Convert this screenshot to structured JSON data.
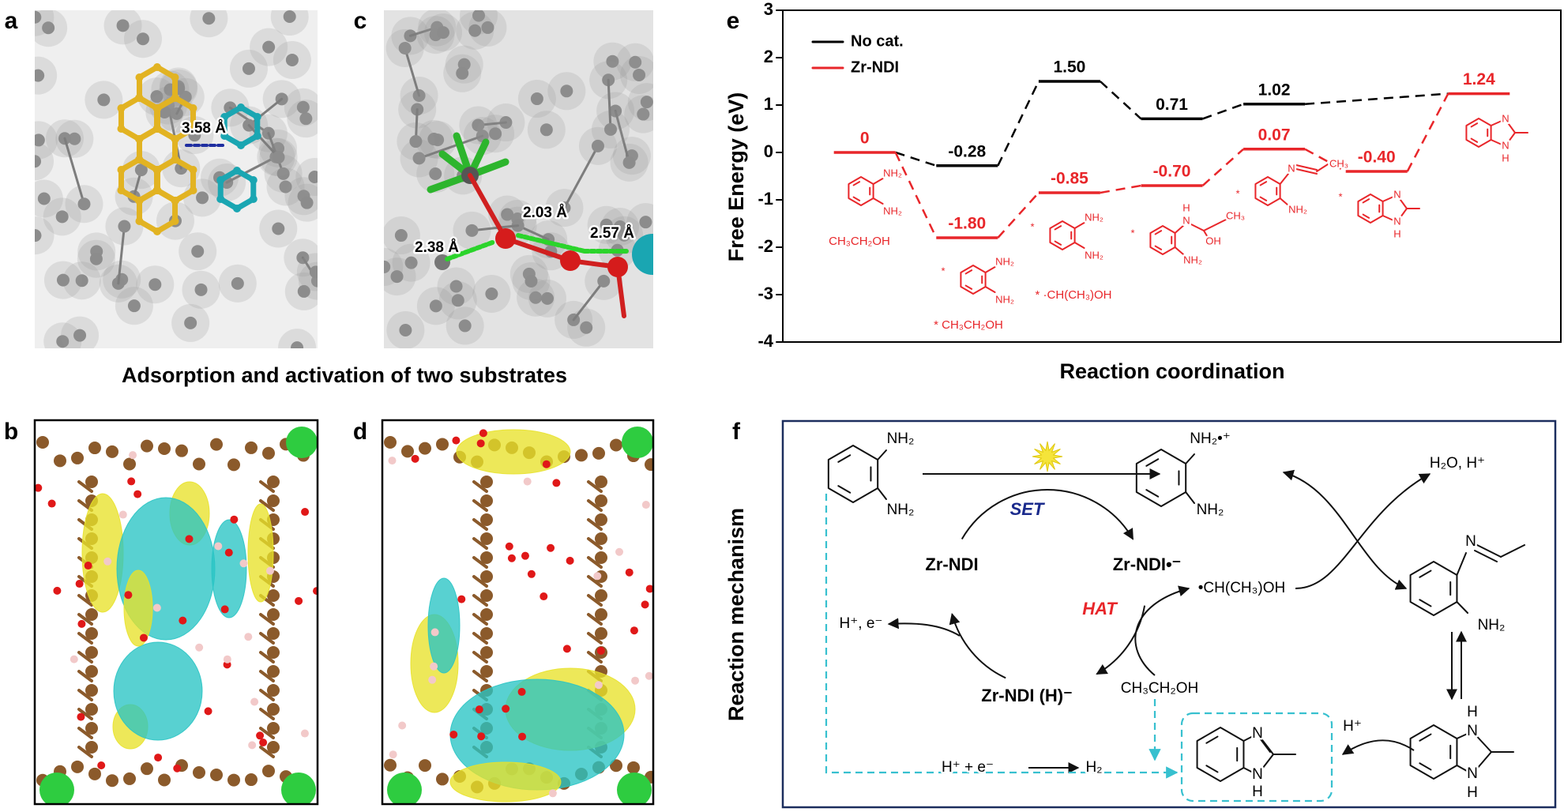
{
  "panel_labels": [
    "a",
    "b",
    "c",
    "d",
    "e",
    "f"
  ],
  "panel_a": {
    "distance_label": "3.58 Å"
  },
  "panel_c": {
    "distance_labels": [
      "2.38 Å",
      "2.03 Å",
      "2.57 Å"
    ]
  },
  "caption": "Adsorption and activation of two substrates",
  "chart_data": {
    "type": "energy",
    "x_label": "Reaction coordination",
    "y_label": "Free Energy (eV)",
    "xlim": [
      0.2,
      7.8
    ],
    "ylim": [
      -4,
      3
    ],
    "yticks": [
      -4,
      -3,
      -2,
      -1,
      0,
      1,
      2,
      3
    ],
    "legend": "upper left",
    "series": [
      {
        "name": "No cat.",
        "color": "#000000",
        "x": [
          1,
          2,
          3,
          4,
          5,
          7
        ],
        "values": [
          0,
          -0.28,
          1.5,
          0.71,
          1.02,
          1.24
        ],
        "value_labels": [
          null,
          "-0.28",
          "1.50",
          "0.71",
          "1.02",
          null
        ]
      },
      {
        "name": "Zr-NDI",
        "color": "#e8262a",
        "x": [
          1,
          2,
          3,
          4,
          5,
          6,
          7
        ],
        "values": [
          0,
          -1.8,
          -0.85,
          -0.7,
          0.07,
          -0.4,
          1.24
        ],
        "value_labels": [
          "0",
          "-1.80",
          "-0.85",
          "-0.70",
          "0.07",
          "-0.40",
          "1.24"
        ]
      }
    ],
    "structures": [
      [
        "NH₂",
        "NH₂",
        "CH₃CH₂OH"
      ],
      [
        "*",
        "NH₂",
        "NH₂",
        "* CH₃CH₂OH"
      ],
      [
        "*",
        "NH₂",
        "NH₂",
        "* ·CH(CH₃)OH"
      ],
      [
        "*",
        "H",
        "N",
        "CH₃",
        "OH",
        "NH₂"
      ],
      [
        "*",
        "N",
        "CH₃",
        "NH₂"
      ],
      [
        "*",
        "N",
        "N",
        "H"
      ],
      [
        "N",
        "N",
        "H"
      ]
    ]
  },
  "mechanism": {
    "title": "Reaction mechanism",
    "labels": [
      "NH₂",
      "NH₂",
      "SET",
      "Zr-NDI",
      "Zr-NDI•⁻",
      "HAT",
      "Zr-NDI (H)⁻",
      "H⁺, e⁻",
      "•CH(CH₃)OH",
      "CH₃CH₂OH",
      "H⁺ + e⁻",
      "H₂",
      "NH₂•⁺",
      "NH₂",
      "H₂O, H⁺",
      "N",
      "NH₂",
      "H",
      "N",
      "N",
      "H",
      "H⁺",
      "N",
      "N",
      "H"
    ]
  }
}
